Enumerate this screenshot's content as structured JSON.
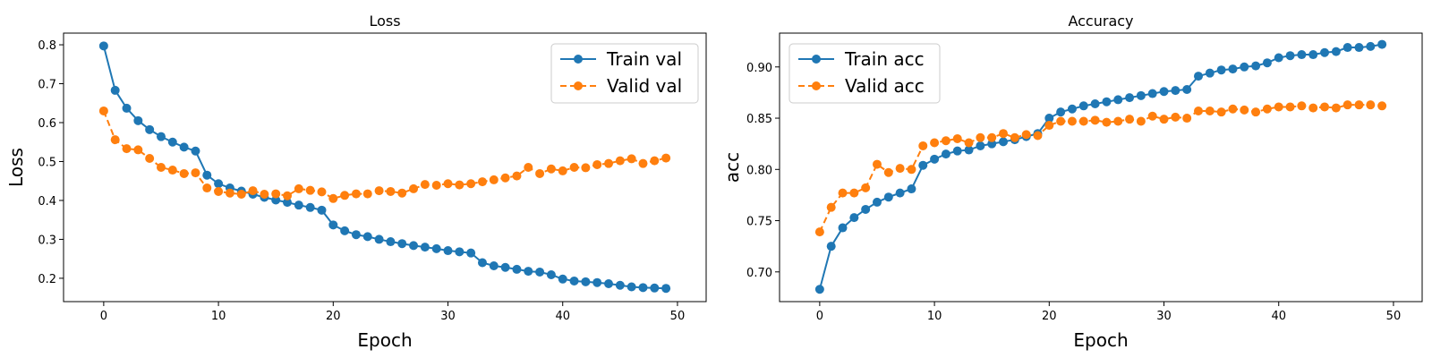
{
  "chart_data": [
    {
      "type": "line",
      "title": "Loss",
      "xlabel": "Epoch",
      "ylabel": "Loss",
      "xlim": [
        -3.5,
        52.5
      ],
      "ylim": [
        0.14,
        0.83
      ],
      "xticks": [
        0,
        10,
        20,
        30,
        40,
        50
      ],
      "yticks": [
        0.2,
        0.3,
        0.4,
        0.5,
        0.6,
        0.7,
        0.8
      ],
      "legend_position": "top-right",
      "grid": false,
      "x": [
        0,
        1,
        2,
        3,
        4,
        5,
        6,
        7,
        8,
        9,
        10,
        11,
        12,
        13,
        14,
        15,
        16,
        17,
        18,
        19,
        20,
        21,
        22,
        23,
        24,
        25,
        26,
        27,
        28,
        29,
        30,
        31,
        32,
        33,
        34,
        35,
        36,
        37,
        38,
        39,
        40,
        41,
        42,
        43,
        44,
        45,
        46,
        47,
        48,
        49
      ],
      "series": [
        {
          "name": "Train val",
          "color": "#1f77b4",
          "linestyle": "solid",
          "values": [
            0.797,
            0.683,
            0.637,
            0.605,
            0.582,
            0.564,
            0.55,
            0.537,
            0.527,
            0.465,
            0.443,
            0.432,
            0.424,
            0.416,
            0.408,
            0.401,
            0.395,
            0.388,
            0.382,
            0.375,
            0.337,
            0.322,
            0.312,
            0.307,
            0.3,
            0.294,
            0.289,
            0.284,
            0.28,
            0.276,
            0.271,
            0.268,
            0.265,
            0.24,
            0.232,
            0.228,
            0.223,
            0.218,
            0.216,
            0.209,
            0.198,
            0.193,
            0.191,
            0.189,
            0.186,
            0.182,
            0.178,
            0.176,
            0.175,
            0.174
          ]
        },
        {
          "name": "Valid val",
          "color": "#ff7f0e",
          "linestyle": "dashed",
          "values": [
            0.63,
            0.556,
            0.533,
            0.53,
            0.508,
            0.485,
            0.478,
            0.469,
            0.471,
            0.432,
            0.423,
            0.419,
            0.416,
            0.425,
            0.416,
            0.417,
            0.412,
            0.43,
            0.426,
            0.422,
            0.405,
            0.413,
            0.417,
            0.417,
            0.425,
            0.423,
            0.419,
            0.43,
            0.441,
            0.439,
            0.443,
            0.44,
            0.443,
            0.448,
            0.453,
            0.458,
            0.463,
            0.485,
            0.469,
            0.481,
            0.476,
            0.485,
            0.484,
            0.492,
            0.495,
            0.502,
            0.507,
            0.495,
            0.502,
            0.509
          ]
        }
      ]
    },
    {
      "type": "line",
      "title": "Accuracy",
      "xlabel": "Epoch",
      "ylabel": "acc",
      "xlim": [
        -3.5,
        52.5
      ],
      "ylim": [
        0.671,
        0.933
      ],
      "xticks": [
        0,
        10,
        20,
        30,
        40,
        50
      ],
      "yticks": [
        0.7,
        0.75,
        0.8,
        0.85,
        0.9
      ],
      "ytick_labels": [
        "0.70",
        "0.75",
        "0.80",
        "0.85",
        "0.90"
      ],
      "legend_position": "top-left",
      "grid": false,
      "x": [
        0,
        1,
        2,
        3,
        4,
        5,
        6,
        7,
        8,
        9,
        10,
        11,
        12,
        13,
        14,
        15,
        16,
        17,
        18,
        19,
        20,
        21,
        22,
        23,
        24,
        25,
        26,
        27,
        28,
        29,
        30,
        31,
        32,
        33,
        34,
        35,
        36,
        37,
        38,
        39,
        40,
        41,
        42,
        43,
        44,
        45,
        46,
        47,
        48,
        49
      ],
      "series": [
        {
          "name": "Train acc",
          "color": "#1f77b4",
          "linestyle": "solid",
          "values": [
            0.683,
            0.725,
            0.743,
            0.753,
            0.761,
            0.768,
            0.773,
            0.777,
            0.781,
            0.804,
            0.81,
            0.815,
            0.818,
            0.819,
            0.823,
            0.825,
            0.827,
            0.829,
            0.832,
            0.835,
            0.85,
            0.856,
            0.859,
            0.862,
            0.864,
            0.866,
            0.868,
            0.87,
            0.872,
            0.874,
            0.876,
            0.877,
            0.878,
            0.891,
            0.894,
            0.897,
            0.898,
            0.9,
            0.901,
            0.904,
            0.909,
            0.911,
            0.912,
            0.912,
            0.914,
            0.915,
            0.919,
            0.919,
            0.92,
            0.922
          ]
        },
        {
          "name": "Valid acc",
          "color": "#ff7f0e",
          "linestyle": "dashed",
          "values": [
            0.739,
            0.763,
            0.777,
            0.777,
            0.782,
            0.805,
            0.797,
            0.801,
            0.8,
            0.823,
            0.826,
            0.828,
            0.83,
            0.826,
            0.831,
            0.831,
            0.835,
            0.831,
            0.834,
            0.833,
            0.843,
            0.847,
            0.847,
            0.847,
            0.848,
            0.846,
            0.847,
            0.849,
            0.847,
            0.852,
            0.849,
            0.851,
            0.85,
            0.857,
            0.857,
            0.856,
            0.859,
            0.858,
            0.856,
            0.859,
            0.861,
            0.861,
            0.862,
            0.86,
            0.861,
            0.86,
            0.863,
            0.863,
            0.863,
            0.862
          ]
        }
      ]
    }
  ]
}
